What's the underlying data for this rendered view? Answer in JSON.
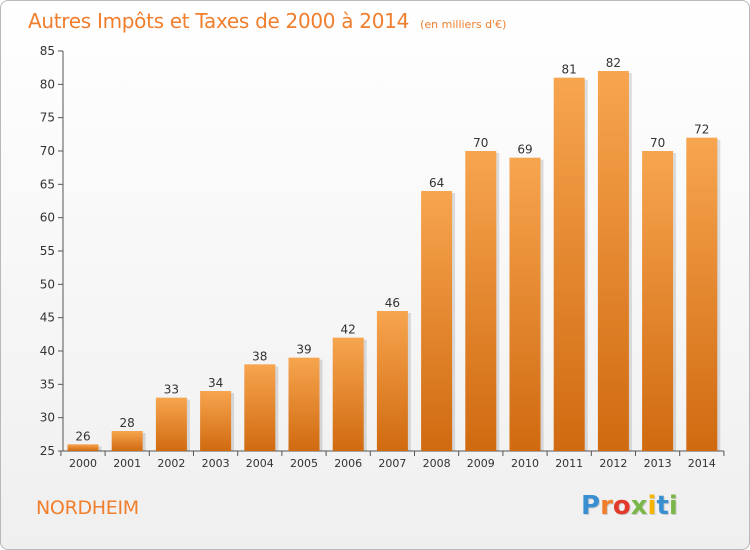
{
  "header": {
    "title": "Autres Impôts et Taxes de 2000 à 2014",
    "unit": "(en milliers d'€)"
  },
  "footer": {
    "commune": "NORDHEIM",
    "brand_letters": [
      "P",
      "r",
      "o",
      "x",
      "i",
      "t",
      "i"
    ],
    "brand_colors": [
      "#3a8fd0",
      "#f07e2c",
      "#e23a2a",
      "#7ab648",
      "#f4b400",
      "#3a8fd0",
      "#7ab648"
    ]
  },
  "colors": {
    "accent": "#f07e2c",
    "bar_top": "#f7a54f",
    "bar_bottom": "#d06a10",
    "axis": "#555555"
  },
  "chart_data": {
    "type": "bar",
    "categories": [
      "2000",
      "2001",
      "2002",
      "2003",
      "2004",
      "2005",
      "2006",
      "2007",
      "2008",
      "2009",
      "2010",
      "2011",
      "2012",
      "2013",
      "2014"
    ],
    "values": [
      26,
      28,
      33,
      34,
      38,
      39,
      42,
      46,
      64,
      70,
      69,
      81,
      82,
      70,
      72
    ],
    "title": "Autres Impôts et Taxes de 2000 à 2014",
    "ylabel": "",
    "xlabel": "",
    "ylim": [
      25,
      85
    ],
    "yticks": [
      25,
      30,
      35,
      40,
      45,
      50,
      55,
      60,
      65,
      70,
      75,
      80,
      85
    ],
    "grid": false,
    "legend": "none"
  }
}
